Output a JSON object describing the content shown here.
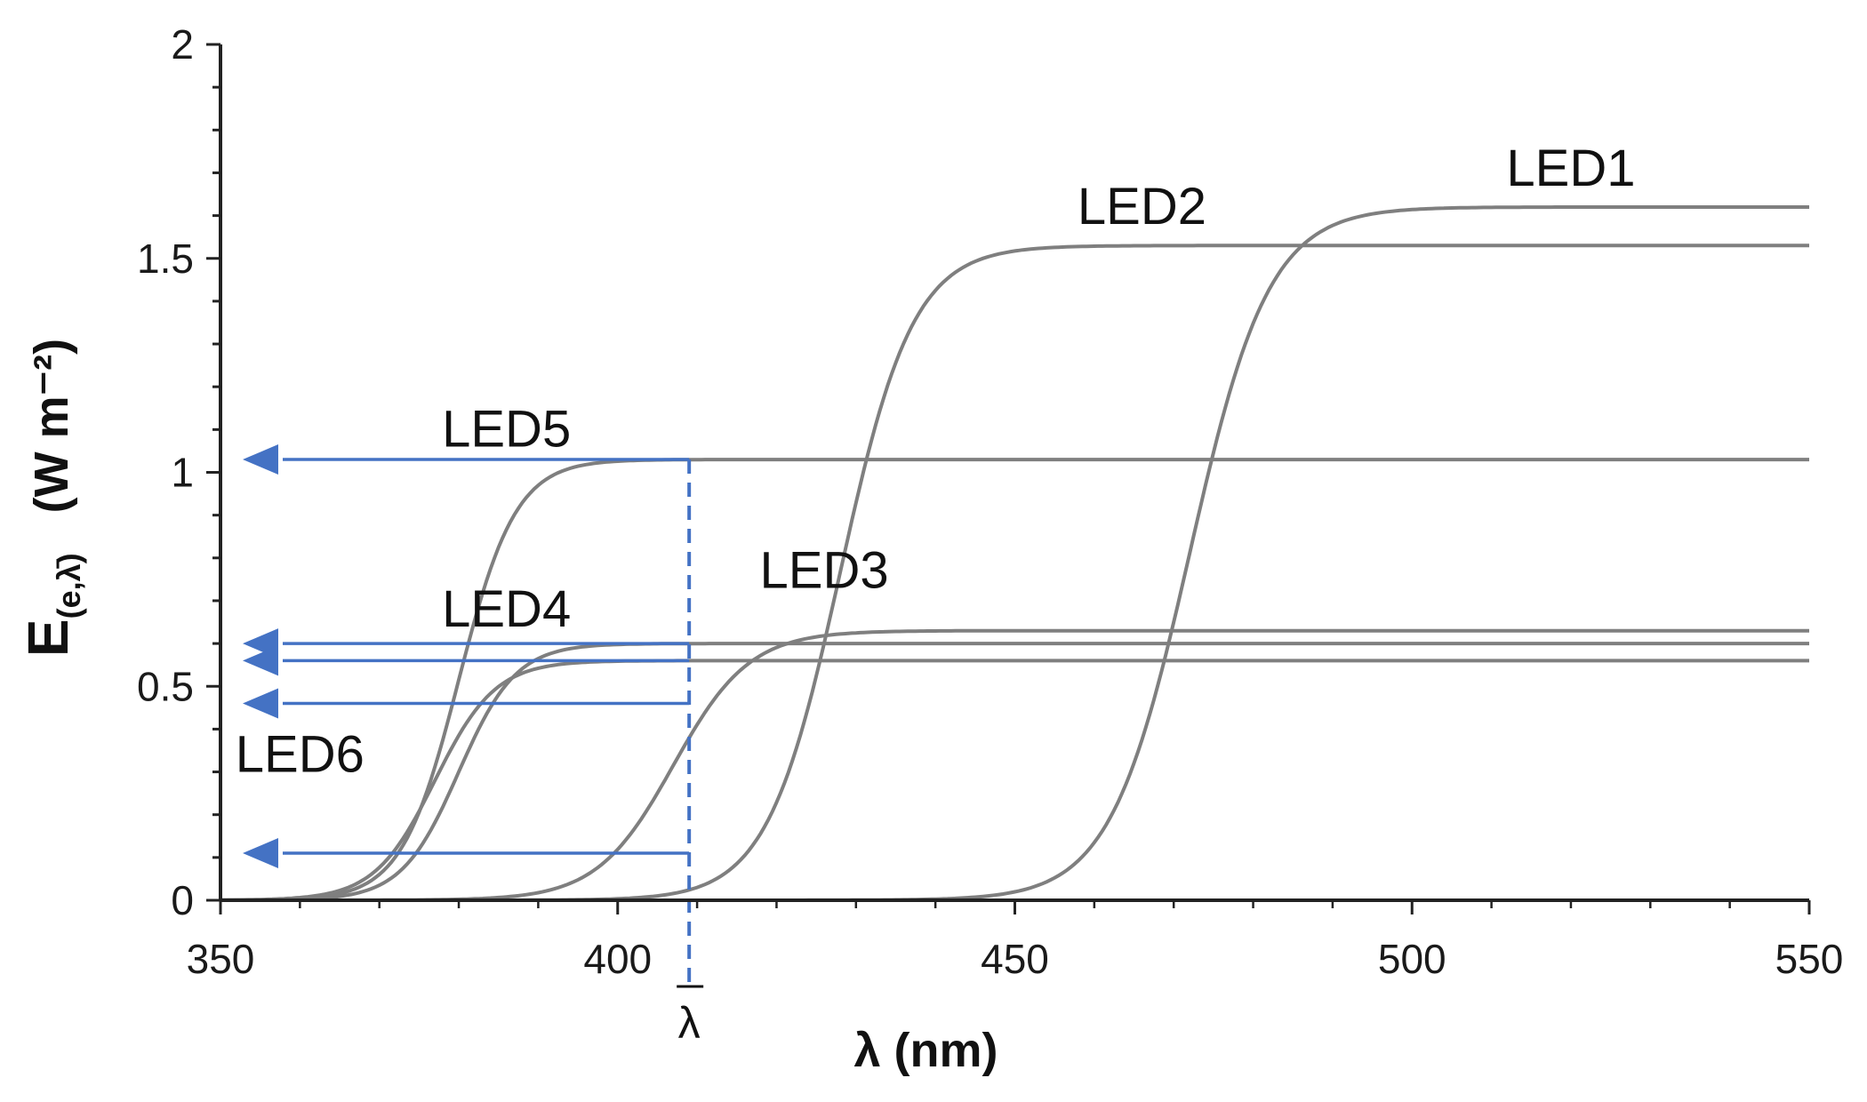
{
  "chart_data": {
    "type": "line",
    "title": "",
    "xlabel": "λ (nm)",
    "ylabel_main": "E",
    "ylabel_sub": "(e,λ̄)",
    "ylabel_units": "(W m⁻²)",
    "xlim": [
      350,
      550
    ],
    "ylim": [
      0,
      2
    ],
    "xticks": [
      350,
      400,
      450,
      500,
      550
    ],
    "xtick_labels": [
      "350",
      "400",
      "450",
      "500",
      "550"
    ],
    "yticks": [
      0,
      0.5,
      1,
      1.5,
      2
    ],
    "ytick_labels": [
      "0",
      "0.5",
      "1",
      "1.5",
      "2"
    ],
    "grid": false,
    "line_color": "#7f7f7f",
    "marker_color": "#4472c4",
    "series": [
      {
        "name": "LED1",
        "plateau": 1.62,
        "midpoint": 472,
        "width": 5.0
      },
      {
        "name": "LED2",
        "plateau": 1.53,
        "midpoint": 428,
        "width": 4.6
      },
      {
        "name": "LED3",
        "plateau": 0.63,
        "midpoint": 407,
        "width": 4.8
      },
      {
        "name": "LED4",
        "plateau": 0.6,
        "midpoint": 380,
        "width": 3.6
      },
      {
        "name": "LED5",
        "plateau": 1.03,
        "midpoint": 380,
        "width": 3.6
      },
      {
        "name": "LED6",
        "plateau": 0.56,
        "midpoint": 377,
        "width": 3.8
      }
    ],
    "labels": [
      {
        "text": "LED1",
        "x": 520,
        "y": 1.67
      },
      {
        "text": "LED2",
        "x": 466,
        "y": 1.58
      },
      {
        "text": "LED3",
        "x": 426,
        "y": 0.73
      },
      {
        "text": "LED4",
        "x": 386,
        "y": 0.64
      },
      {
        "text": "LED5",
        "x": 386,
        "y": 1.06
      },
      {
        "text": "LED6",
        "x": 360,
        "y": 0.3
      }
    ],
    "annotation": {
      "x": 409,
      "label": "λ",
      "arrows_to_y": [
        1.03,
        0.6,
        0.56,
        0.46,
        0.11
      ]
    }
  }
}
